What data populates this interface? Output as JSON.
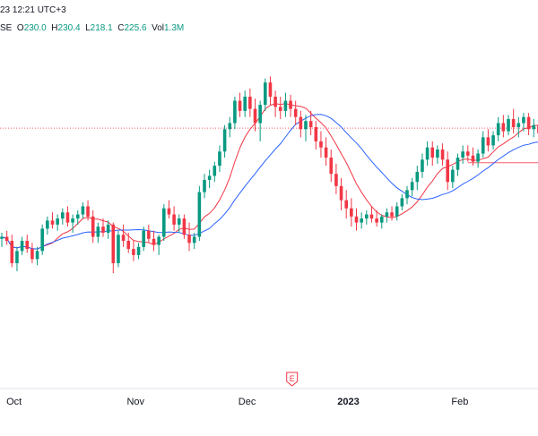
{
  "header": {
    "timestamp": "23 12:21 UTC+3",
    "exchange_fragment": "SE",
    "open_label": "O",
    "open_value": "230.0",
    "high_label": "H",
    "high_value": "230.4",
    "low_label": "L",
    "low_value": "218.1",
    "close_label": "C",
    "close_value": "225.6",
    "vol_label": "Vol",
    "vol_value": "1.3M"
  },
  "chart_data": {
    "type": "candlestick",
    "title": "",
    "xlabel": "",
    "ylabel": "",
    "grid": false,
    "x_tick_labels": [
      "Oct",
      "Nov",
      "Dec",
      "2023",
      "Feb"
    ],
    "ylim": [
      130,
      302
    ],
    "candles_ohlc": [
      [
        202,
        205,
        198,
        203
      ],
      [
        203,
        206,
        199,
        201
      ],
      [
        201,
        204,
        188,
        190
      ],
      [
        190,
        198,
        186,
        196
      ],
      [
        196,
        203,
        194,
        201
      ],
      [
        201,
        204,
        195,
        197
      ],
      [
        197,
        200,
        190,
        192
      ],
      [
        192,
        198,
        189,
        196
      ],
      [
        196,
        209,
        194,
        207
      ],
      [
        207,
        213,
        204,
        211
      ],
      [
        211,
        215,
        207,
        209
      ],
      [
        209,
        214,
        206,
        212
      ],
      [
        212,
        217,
        209,
        215
      ],
      [
        215,
        218,
        208,
        210
      ],
      [
        210,
        214,
        205,
        212
      ],
      [
        212,
        216,
        209,
        214
      ],
      [
        214,
        220,
        212,
        218
      ],
      [
        218,
        221,
        211,
        213
      ],
      [
        213,
        216,
        200,
        203
      ],
      [
        203,
        210,
        200,
        208
      ],
      [
        208,
        212,
        203,
        205
      ],
      [
        205,
        211,
        202,
        209
      ],
      [
        209,
        210,
        185,
        190
      ],
      [
        190,
        206,
        188,
        204
      ],
      [
        204,
        209,
        198,
        201
      ],
      [
        201,
        205,
        195,
        197
      ],
      [
        197,
        201,
        191,
        194
      ],
      [
        194,
        200,
        192,
        198
      ],
      [
        198,
        208,
        196,
        206
      ],
      [
        206,
        209,
        200,
        202
      ],
      [
        202,
        206,
        196,
        199
      ],
      [
        199,
        204,
        194,
        203
      ],
      [
        203,
        219,
        201,
        217
      ],
      [
        217,
        221,
        212,
        214
      ],
      [
        214,
        218,
        206,
        209
      ],
      [
        209,
        214,
        205,
        212
      ],
      [
        212,
        214,
        202,
        204
      ],
      [
        204,
        210,
        196,
        200
      ],
      [
        200,
        205,
        197,
        203
      ],
      [
        203,
        228,
        201,
        225
      ],
      [
        225,
        234,
        222,
        231
      ],
      [
        231,
        236,
        227,
        233
      ],
      [
        233,
        240,
        230,
        238
      ],
      [
        238,
        248,
        235,
        245
      ],
      [
        245,
        258,
        242,
        256
      ],
      [
        256,
        262,
        252,
        259
      ],
      [
        259,
        272,
        256,
        270
      ],
      [
        270,
        274,
        262,
        265
      ],
      [
        265,
        275,
        262,
        272
      ],
      [
        272,
        276,
        262,
        266
      ],
      [
        266,
        271,
        255,
        259
      ],
      [
        259,
        270,
        250,
        268
      ],
      [
        268,
        281,
        265,
        279
      ],
      [
        279,
        282,
        268,
        272
      ],
      [
        272,
        275,
        262,
        267
      ],
      [
        267,
        272,
        261,
        265
      ],
      [
        265,
        274,
        262,
        270
      ],
      [
        270,
        273,
        262,
        266
      ],
      [
        266,
        270,
        258,
        262
      ],
      [
        262,
        265,
        252,
        256
      ],
      [
        256,
        263,
        250,
        260
      ],
      [
        260,
        265,
        253,
        257
      ],
      [
        257,
        260,
        246,
        250
      ],
      [
        250,
        255,
        242,
        247
      ],
      [
        247,
        252,
        238,
        242
      ],
      [
        242,
        246,
        230,
        234
      ],
      [
        234,
        239,
        224,
        228
      ],
      [
        228,
        232,
        216,
        221
      ],
      [
        221,
        226,
        212,
        217
      ],
      [
        217,
        222,
        208,
        213
      ],
      [
        213,
        217,
        206,
        210
      ],
      [
        210,
        215,
        207,
        212
      ],
      [
        212,
        216,
        209,
        214
      ],
      [
        214,
        218,
        210,
        212
      ],
      [
        212,
        216,
        208,
        210
      ],
      [
        210,
        214,
        207,
        213
      ],
      [
        213,
        217,
        210,
        215
      ],
      [
        215,
        218,
        211,
        213
      ],
      [
        213,
        220,
        211,
        218
      ],
      [
        218,
        224,
        216,
        222
      ],
      [
        222,
        228,
        219,
        226
      ],
      [
        226,
        232,
        223,
        230
      ],
      [
        230,
        238,
        226,
        235
      ],
      [
        235,
        244,
        232,
        241
      ],
      [
        241,
        250,
        238,
        247
      ],
      [
        247,
        250,
        238,
        242
      ],
      [
        242,
        248,
        239,
        246
      ],
      [
        246,
        249,
        238,
        241
      ],
      [
        241,
        245,
        226,
        230
      ],
      [
        230,
        238,
        227,
        236
      ],
      [
        236,
        244,
        233,
        242
      ],
      [
        242,
        248,
        239,
        245
      ],
      [
        245,
        248,
        240,
        243
      ],
      [
        243,
        247,
        238,
        240
      ],
      [
        240,
        246,
        237,
        244
      ],
      [
        244,
        255,
        242,
        252
      ],
      [
        252,
        256,
        245,
        248
      ],
      [
        248,
        255,
        246,
        253
      ],
      [
        253,
        262,
        250,
        259
      ],
      [
        259,
        263,
        252,
        255
      ],
      [
        255,
        263,
        253,
        261
      ],
      [
        261,
        266,
        254,
        257
      ],
      [
        257,
        262,
        252,
        259
      ],
      [
        259,
        264,
        255,
        262
      ],
      [
        262,
        264,
        253,
        256
      ],
      [
        256,
        261,
        252,
        258
      ],
      [
        258,
        262,
        252,
        254
      ]
    ],
    "moving_averages": [
      {
        "color": "#f23645",
        "period": 9
      },
      {
        "color": "#2962ff",
        "period": 20
      }
    ],
    "horizontal_levels": [
      {
        "value": 256.5,
        "style": "dotted",
        "color": "#f23645"
      },
      {
        "value": 239.5,
        "style": "solid",
        "color": "#f23645"
      }
    ],
    "event_marker": {
      "label": "E"
    }
  },
  "colors": {
    "up": "#089981",
    "down": "#f23645",
    "axis_text": "#131722",
    "border": "#e0e3eb"
  }
}
